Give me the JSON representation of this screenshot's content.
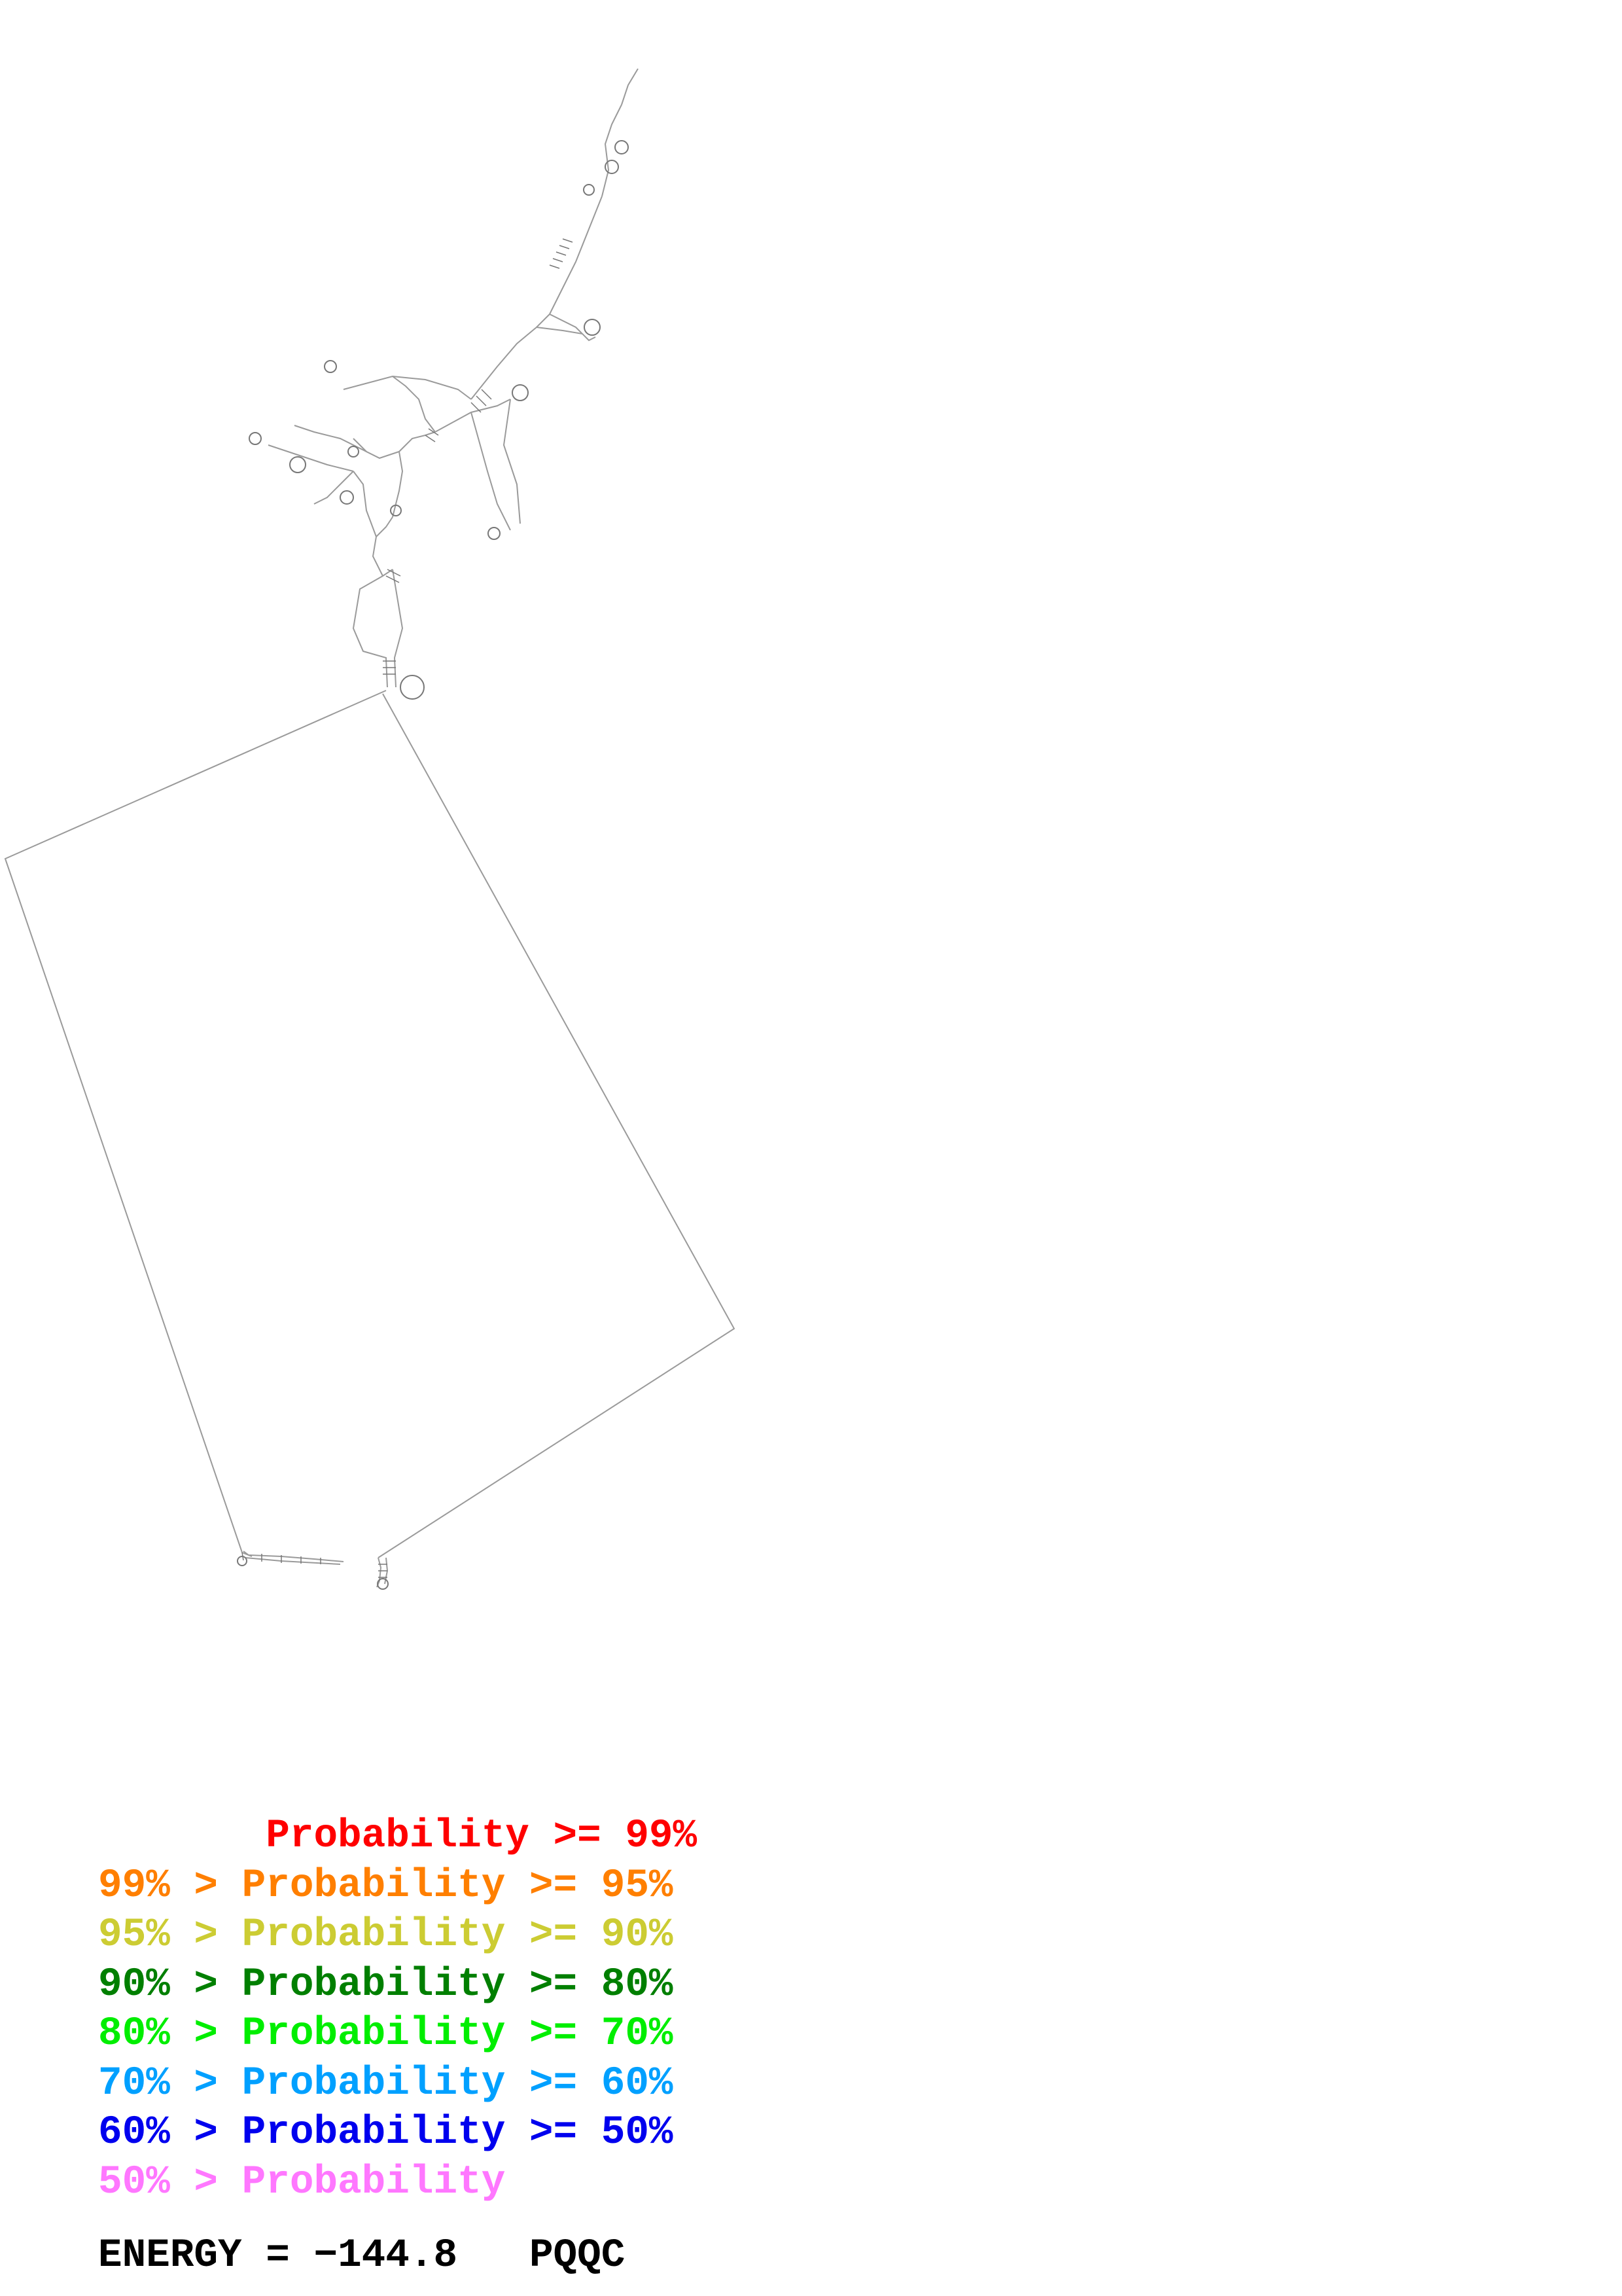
{
  "legend": {
    "rows": [
      {
        "text": "       Probability >= 99%",
        "color": "#ff0000"
      },
      {
        "text": "99% > Probability >= 95%",
        "color": "#ff7f00"
      },
      {
        "text": "95% > Probability >= 90%",
        "color": "#cccc33"
      },
      {
        "text": "90% > Probability >= 80%",
        "color": "#007f00"
      },
      {
        "text": "80% > Probability >= 70%",
        "color": "#00ee00"
      },
      {
        "text": "70% > Probability >= 60%",
        "color": "#00a0ff"
      },
      {
        "text": "60% > Probability >= 50%",
        "color": "#0000ee"
      },
      {
        "text": "50% > Probability",
        "color": "#ff77ff"
      }
    ]
  },
  "energy": {
    "label": "ENERGY =",
    "value": "−144.8",
    "name": "PQQC"
  },
  "colors": {
    "backbone": "#9a9a9a",
    "pair": "#777777",
    "background": "#ffffff"
  }
}
